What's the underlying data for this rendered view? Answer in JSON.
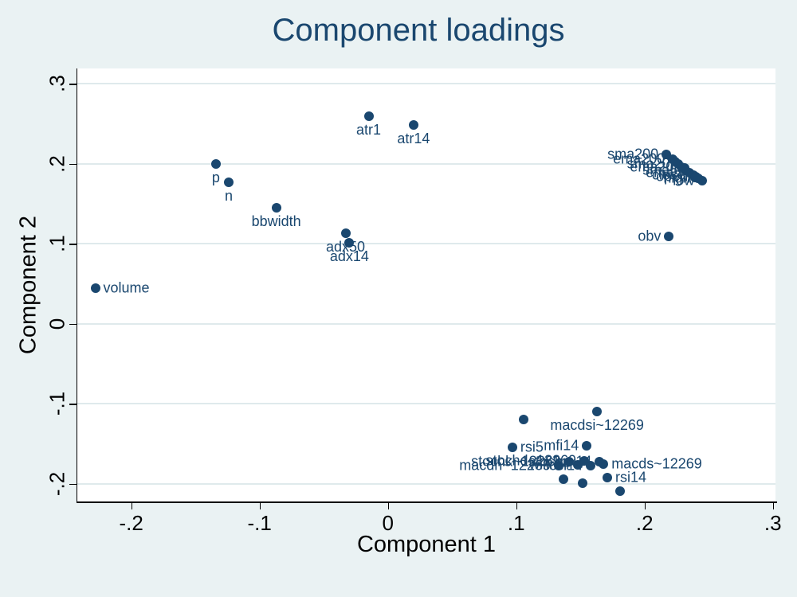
{
  "figure": {
    "title": "Component loadings",
    "background_color": "#eaf2f3",
    "plot_background_color": "#ffffff",
    "grid_color": "#dfeaec",
    "accent_navy": "#1a476f",
    "axis_text_color": "#000000"
  },
  "chart_data": {
    "type": "scatter",
    "title": "Component loadings",
    "xlabel": "Component 1",
    "ylabel": "Component 2",
    "xlim": [
      -0.242,
      0.302
    ],
    "ylim": [
      -0.222,
      0.319
    ],
    "grid": "horizontal-only",
    "legend": "none",
    "marker_color": "#1a476f",
    "x_ticks": [
      {
        "value": -0.2,
        "label": "-.2"
      },
      {
        "value": -0.1,
        "label": "-.1"
      },
      {
        "value": 0,
        "label": "0"
      },
      {
        "value": 0.1,
        "label": ".1"
      },
      {
        "value": 0.2,
        "label": ".2"
      },
      {
        "value": 0.3,
        "label": ".3"
      }
    ],
    "y_ticks": [
      {
        "value": 0.3,
        "label": ".3"
      },
      {
        "value": 0.2,
        "label": ".2"
      },
      {
        "value": 0.1,
        "label": ".1"
      },
      {
        "value": 0,
        "label": "0"
      },
      {
        "value": -0.1,
        "label": "-.1"
      },
      {
        "value": -0.2,
        "label": "-.2"
      }
    ],
    "points": [
      {
        "x": -0.228,
        "y": 0.045,
        "label": "volume",
        "label_pos": "right"
      },
      {
        "x": -0.134,
        "y": 0.2,
        "label": "p",
        "label_pos": "below"
      },
      {
        "x": -0.124,
        "y": 0.177,
        "label": "n",
        "label_pos": "below"
      },
      {
        "x": -0.087,
        "y": 0.145,
        "label": "bbwidth",
        "label_pos": "below"
      },
      {
        "x": -0.033,
        "y": 0.113,
        "label": "adx50",
        "label_pos": "below"
      },
      {
        "x": -0.03,
        "y": 0.101,
        "label": "adx14",
        "label_pos": "below"
      },
      {
        "x": -0.015,
        "y": 0.259,
        "label": "atr1",
        "label_pos": "below"
      },
      {
        "x": 0.02,
        "y": 0.248,
        "label": "atr14",
        "label_pos": "below"
      },
      {
        "x": 0.219,
        "y": 0.109,
        "label": "obv",
        "label_pos": "left"
      },
      {
        "x": 0.217,
        "y": 0.212,
        "label": "sma200",
        "label_pos": "left"
      },
      {
        "x": 0.222,
        "y": 0.206,
        "label": "ema200",
        "label_pos": "left"
      },
      {
        "x": 0.226,
        "y": 0.2,
        "label": "sma20",
        "label_pos": "left"
      },
      {
        "x": 0.229,
        "y": 0.196,
        "label": "ema20",
        "label_pos": "left"
      },
      {
        "x": 0.232,
        "y": 0.192,
        "label": "sma5",
        "label_pos": "left"
      },
      {
        "x": 0.235,
        "y": 0.189,
        "label": "ema5",
        "label_pos": "left"
      },
      {
        "x": 0.238,
        "y": 0.186,
        "label": "close",
        "label_pos": "left"
      },
      {
        "x": 0.24,
        "y": 0.184,
        "label": "open",
        "label_pos": "left"
      },
      {
        "x": 0.242,
        "y": 0.182,
        "label": "high",
        "label_pos": "left"
      },
      {
        "x": 0.245,
        "y": 0.179,
        "label": "low",
        "label_pos": "left"
      },
      {
        "x": 0.224,
        "y": 0.203,
        "label": "",
        "label_pos": "none"
      },
      {
        "x": 0.231,
        "y": 0.195,
        "label": "",
        "label_pos": "none"
      },
      {
        "x": 0.239,
        "y": 0.183,
        "label": "",
        "label_pos": "none"
      },
      {
        "x": 0.106,
        "y": -0.12,
        "label": "",
        "label_pos": "none"
      },
      {
        "x": 0.163,
        "y": -0.11,
        "label": "macdsi~12269",
        "label_pos": "below"
      },
      {
        "x": 0.097,
        "y": -0.154,
        "label": "rsi5",
        "label_pos": "right"
      },
      {
        "x": 0.155,
        "y": -0.152,
        "label": "mfi14",
        "label_pos": "left"
      },
      {
        "x": 0.133,
        "y": -0.177,
        "label": "macdh~12269",
        "label_pos": "left"
      },
      {
        "x": 0.141,
        "y": -0.172,
        "label": "stochk~12269",
        "label_pos": "left"
      },
      {
        "x": 0.148,
        "y": -0.176,
        "label": "willr14",
        "label_pos": "left"
      },
      {
        "x": 0.153,
        "y": -0.171,
        "label": "stochd~12269",
        "label_pos": "left"
      },
      {
        "x": 0.158,
        "y": -0.177,
        "label": "cci14",
        "label_pos": "left"
      },
      {
        "x": 0.165,
        "y": -0.172,
        "label": "stochr~14",
        "label_pos": "left"
      },
      {
        "x": 0.168,
        "y": -0.175,
        "label": "macds~12269",
        "label_pos": "right"
      },
      {
        "x": 0.171,
        "y": -0.192,
        "label": "rsi14",
        "label_pos": "right"
      },
      {
        "x": 0.152,
        "y": -0.199,
        "label": "",
        "label_pos": "none"
      },
      {
        "x": 0.181,
        "y": -0.209,
        "label": "",
        "label_pos": "none"
      },
      {
        "x": 0.137,
        "y": -0.194,
        "label": "",
        "label_pos": "none"
      }
    ]
  }
}
